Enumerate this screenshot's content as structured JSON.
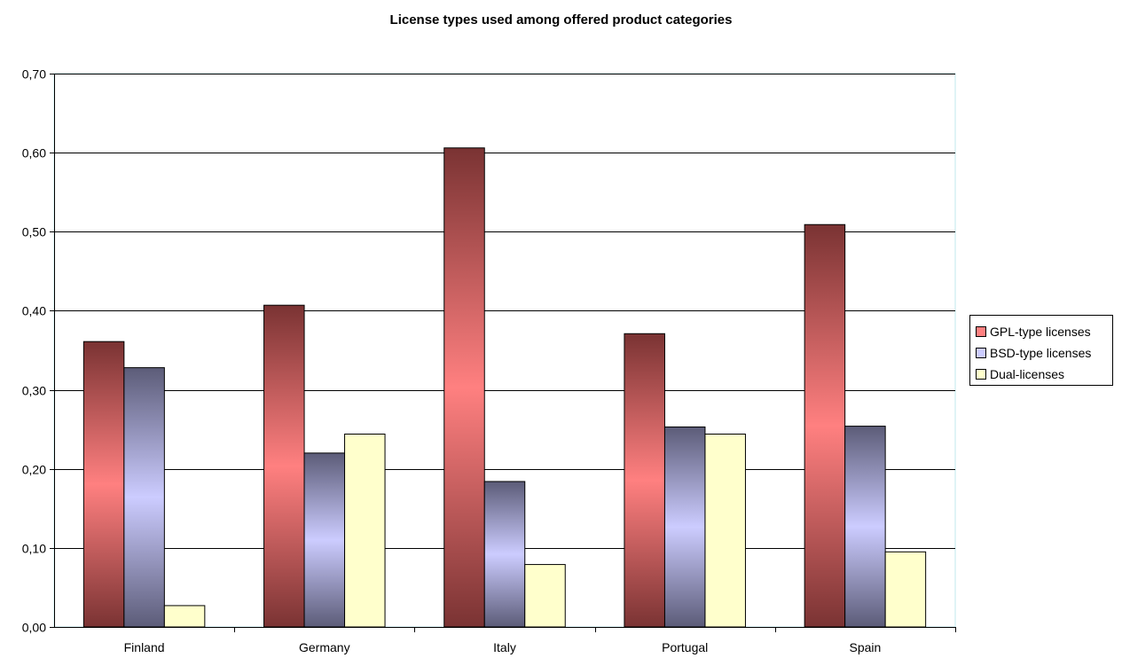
{
  "chart_data": {
    "type": "bar",
    "title": "License types used among offered product categories",
    "categories": [
      "Finland",
      "Germany",
      "Italy",
      "Portugal",
      "Spain"
    ],
    "series": [
      {
        "name": "GPL-type licenses",
        "values": [
          0.361,
          0.407,
          0.606,
          0.371,
          0.509
        ],
        "color": "#ff8080",
        "dark": "#7a3333"
      },
      {
        "name": "BSD-type licenses",
        "values": [
          0.328,
          0.22,
          0.184,
          0.253,
          0.254
        ],
        "color": "#ccccff",
        "dark": "#5c5c78"
      },
      {
        "name": "Dual-licenses",
        "values": [
          0.027,
          0.244,
          0.079,
          0.244,
          0.095
        ],
        "color": "#ffffcc",
        "dark": "#ffffcc"
      }
    ],
    "ylim": [
      0,
      0.7
    ],
    "yticks": [
      "0,00",
      "0,10",
      "0,20",
      "0,30",
      "0,40",
      "0,50",
      "0,60",
      "0,70"
    ],
    "xlabel": "",
    "ylabel": "",
    "grid": true,
    "legend_position": "right"
  }
}
